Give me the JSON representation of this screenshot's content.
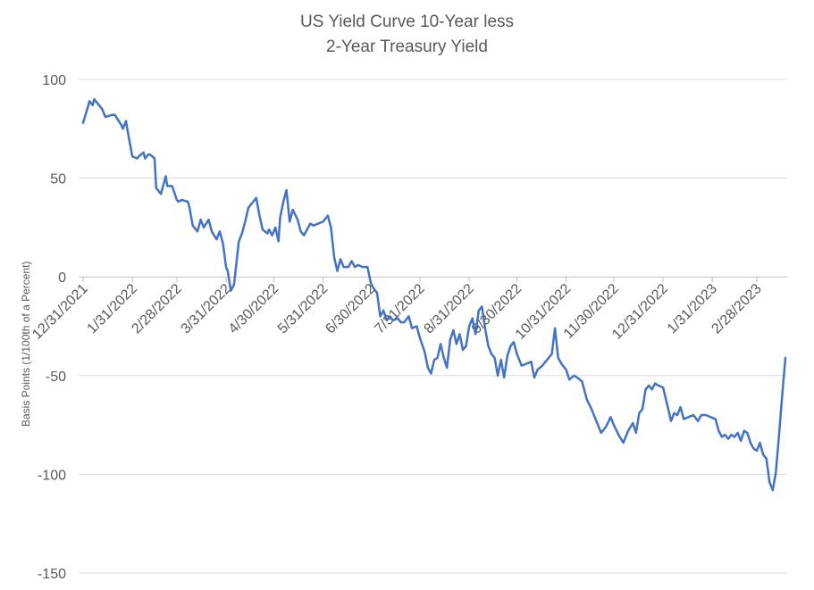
{
  "chart_data": {
    "type": "line",
    "title": [
      "US Yield Curve 10-Year less",
      "2-Year Treasury Yield"
    ],
    "xlabel": "",
    "ylabel": "Basis Points (1/100th of a Percent)",
    "ylim": [
      -150,
      100
    ],
    "yticks": [
      100,
      50,
      0,
      -50,
      -100,
      -150
    ],
    "grid": true,
    "legend": "none",
    "line_color": "#4472C4",
    "xticks": [
      "12/31/2021",
      "1/31/2022",
      "2/28/2022",
      "3/31/2022",
      "4/30/2022",
      "5/31/2022",
      "6/30/2022",
      "7/31/2022",
      "8/31/2022",
      "9/30/2022",
      "10/31/2022",
      "11/30/2022",
      "12/31/2022",
      "1/31/2023",
      "2/28/2023"
    ],
    "series": [
      {
        "values": [
          [
            "2021-12-31",
            78
          ],
          [
            "2022-01-03",
            86
          ],
          [
            "2022-01-04",
            89
          ],
          [
            "2022-01-06",
            87
          ],
          [
            "2022-01-07",
            90
          ],
          [
            "2022-01-10",
            87
          ],
          [
            "2022-01-12",
            85
          ],
          [
            "2022-01-14",
            81
          ],
          [
            "2022-01-18",
            82
          ],
          [
            "2022-01-20",
            82
          ],
          [
            "2022-01-24",
            77
          ],
          [
            "2022-01-25",
            75
          ],
          [
            "2022-01-27",
            79
          ],
          [
            "2022-01-28",
            74
          ],
          [
            "2022-01-31",
            61
          ],
          [
            "2022-02-03",
            60
          ],
          [
            "2022-02-04",
            61
          ],
          [
            "2022-02-07",
            63
          ],
          [
            "2022-02-08",
            60
          ],
          [
            "2022-02-10",
            62
          ],
          [
            "2022-02-11",
            62
          ],
          [
            "2022-02-14",
            60
          ],
          [
            "2022-02-15",
            45
          ],
          [
            "2022-02-17",
            43
          ],
          [
            "2022-02-18",
            42
          ],
          [
            "2022-02-21",
            51
          ],
          [
            "2022-02-22",
            46
          ],
          [
            "2022-02-25",
            46
          ],
          [
            "2022-02-28",
            39
          ],
          [
            "2022-03-01",
            38
          ],
          [
            "2022-03-03",
            39
          ],
          [
            "2022-03-07",
            38
          ],
          [
            "2022-03-08",
            35
          ],
          [
            "2022-03-10",
            26
          ],
          [
            "2022-03-13",
            23
          ],
          [
            "2022-03-15",
            29
          ],
          [
            "2022-03-17",
            25
          ],
          [
            "2022-03-20",
            29
          ],
          [
            "2022-03-22",
            23
          ],
          [
            "2022-03-25",
            19
          ],
          [
            "2022-03-27",
            23
          ],
          [
            "2022-03-29",
            17
          ],
          [
            "2022-03-31",
            5
          ],
          [
            "2022-04-01",
            3
          ],
          [
            "2022-04-03",
            -7
          ],
          [
            "2022-04-05",
            -4
          ],
          [
            "2022-04-08",
            18
          ],
          [
            "2022-04-10",
            22
          ],
          [
            "2022-04-12",
            28
          ],
          [
            "2022-04-14",
            35
          ],
          [
            "2022-04-17",
            38
          ],
          [
            "2022-04-19",
            40
          ],
          [
            "2022-04-21",
            31
          ],
          [
            "2022-04-23",
            24
          ],
          [
            "2022-04-26",
            22
          ],
          [
            "2022-04-27",
            24
          ],
          [
            "2022-04-29",
            21
          ],
          [
            "2022-05-01",
            25
          ],
          [
            "2022-05-03",
            18
          ],
          [
            "2022-05-04",
            30
          ],
          [
            "2022-05-06",
            38
          ],
          [
            "2022-05-08",
            44
          ],
          [
            "2022-05-10",
            28
          ],
          [
            "2022-05-12",
            34
          ],
          [
            "2022-05-15",
            29
          ],
          [
            "2022-05-17",
            23
          ],
          [
            "2022-05-19",
            21
          ],
          [
            "2022-05-21",
            24
          ],
          [
            "2022-05-23",
            27
          ],
          [
            "2022-05-25",
            26
          ],
          [
            "2022-05-28",
            27
          ],
          [
            "2022-05-31",
            28
          ],
          [
            "2022-06-03",
            31
          ],
          [
            "2022-06-05",
            25
          ],
          [
            "2022-06-07",
            10
          ],
          [
            "2022-06-09",
            3
          ],
          [
            "2022-06-11",
            9
          ],
          [
            "2022-06-13",
            5
          ],
          [
            "2022-06-16",
            5
          ],
          [
            "2022-06-18",
            8
          ],
          [
            "2022-06-20",
            5
          ],
          [
            "2022-06-22",
            6
          ],
          [
            "2022-06-25",
            5
          ],
          [
            "2022-06-28",
            5
          ],
          [
            "2022-06-30",
            -3
          ],
          [
            "2022-07-02",
            -6
          ],
          [
            "2022-07-04",
            -8
          ],
          [
            "2022-07-06",
            -20
          ],
          [
            "2022-07-08",
            -17
          ],
          [
            "2022-07-10",
            -22
          ],
          [
            "2022-07-12",
            -20
          ],
          [
            "2022-07-14",
            -22
          ],
          [
            "2022-07-17",
            -21
          ],
          [
            "2022-07-19",
            -23
          ],
          [
            "2022-07-21",
            -23
          ],
          [
            "2022-07-24",
            -20
          ],
          [
            "2022-07-26",
            -26
          ],
          [
            "2022-07-29",
            -25
          ],
          [
            "2022-07-31",
            -31
          ],
          [
            "2022-08-03",
            -38
          ],
          [
            "2022-08-05",
            -46
          ],
          [
            "2022-08-07",
            -49
          ],
          [
            "2022-08-09",
            -42
          ],
          [
            "2022-08-11",
            -41
          ],
          [
            "2022-08-13",
            -34
          ],
          [
            "2022-08-15",
            -41
          ],
          [
            "2022-08-17",
            -46
          ],
          [
            "2022-08-19",
            -32
          ],
          [
            "2022-08-21",
            -27
          ],
          [
            "2022-08-23",
            -34
          ],
          [
            "2022-08-25",
            -29
          ],
          [
            "2022-08-27",
            -37
          ],
          [
            "2022-08-29",
            -35
          ],
          [
            "2022-08-31",
            -25
          ],
          [
            "2022-09-02",
            -21
          ],
          [
            "2022-09-04",
            -29
          ],
          [
            "2022-09-06",
            -17
          ],
          [
            "2022-09-08",
            -15
          ],
          [
            "2022-09-10",
            -26
          ],
          [
            "2022-09-12",
            -35
          ],
          [
            "2022-09-14",
            -39
          ],
          [
            "2022-09-16",
            -41
          ],
          [
            "2022-09-18",
            -50
          ],
          [
            "2022-09-20",
            -42
          ],
          [
            "2022-09-22",
            -51
          ],
          [
            "2022-09-24",
            -40
          ],
          [
            "2022-09-26",
            -35
          ],
          [
            "2022-09-28",
            -33
          ],
          [
            "2022-09-30",
            -39
          ],
          [
            "2022-10-03",
            -45
          ],
          [
            "2022-10-06",
            -44
          ],
          [
            "2022-10-09",
            -43
          ],
          [
            "2022-10-11",
            -51
          ],
          [
            "2022-10-13",
            -47
          ],
          [
            "2022-10-16",
            -45
          ],
          [
            "2022-10-19",
            -42
          ],
          [
            "2022-10-22",
            -39
          ],
          [
            "2022-10-24",
            -26
          ],
          [
            "2022-10-26",
            -41
          ],
          [
            "2022-10-28",
            -44
          ],
          [
            "2022-10-31",
            -47
          ],
          [
            "2022-11-02",
            -52
          ],
          [
            "2022-11-05",
            -50
          ],
          [
            "2022-11-07",
            -51
          ],
          [
            "2022-11-10",
            -53
          ],
          [
            "2022-11-13",
            -62
          ],
          [
            "2022-11-16",
            -67
          ],
          [
            "2022-11-19",
            -73
          ],
          [
            "2022-11-22",
            -79
          ],
          [
            "2022-11-25",
            -76
          ],
          [
            "2022-11-28",
            -71
          ],
          [
            "2022-11-30",
            -75
          ],
          [
            "2022-12-03",
            -80
          ],
          [
            "2022-12-06",
            -84
          ],
          [
            "2022-12-09",
            -78
          ],
          [
            "2022-12-12",
            -74
          ],
          [
            "2022-12-14",
            -79
          ],
          [
            "2022-12-16",
            -69
          ],
          [
            "2022-12-18",
            -67
          ],
          [
            "2022-12-20",
            -57
          ],
          [
            "2022-12-22",
            -55
          ],
          [
            "2022-12-24",
            -57
          ],
          [
            "2022-12-26",
            -54
          ],
          [
            "2022-12-28",
            -55
          ],
          [
            "2022-12-31",
            -56
          ],
          [
            "2023-01-03",
            -66
          ],
          [
            "2023-01-05",
            -73
          ],
          [
            "2023-01-07",
            -69
          ],
          [
            "2023-01-09",
            -70
          ],
          [
            "2023-01-11",
            -66
          ],
          [
            "2023-01-13",
            -72
          ],
          [
            "2023-01-16",
            -71
          ],
          [
            "2023-01-19",
            -70
          ],
          [
            "2023-01-22",
            -73
          ],
          [
            "2023-01-24",
            -70
          ],
          [
            "2023-01-27",
            -70
          ],
          [
            "2023-01-30",
            -71
          ],
          [
            "2023-02-02",
            -72
          ],
          [
            "2023-02-04",
            -78
          ],
          [
            "2023-02-06",
            -81
          ],
          [
            "2023-02-08",
            -80
          ],
          [
            "2023-02-10",
            -82
          ],
          [
            "2023-02-12",
            -80
          ],
          [
            "2023-02-14",
            -81
          ],
          [
            "2023-02-16",
            -79
          ],
          [
            "2023-02-18",
            -83
          ],
          [
            "2023-02-20",
            -78
          ],
          [
            "2023-02-22",
            -79
          ],
          [
            "2023-02-24",
            -84
          ],
          [
            "2023-02-26",
            -87
          ],
          [
            "2023-02-28",
            -88
          ],
          [
            "2023-03-02",
            -84
          ],
          [
            "2023-03-04",
            -90
          ],
          [
            "2023-03-06",
            -92
          ],
          [
            "2023-03-08",
            -104
          ],
          [
            "2023-03-10",
            -108
          ],
          [
            "2023-03-12",
            -99
          ],
          [
            "2023-03-14",
            -80
          ],
          [
            "2023-03-16",
            -60
          ],
          [
            "2023-03-18",
            -41
          ]
        ]
      }
    ]
  }
}
